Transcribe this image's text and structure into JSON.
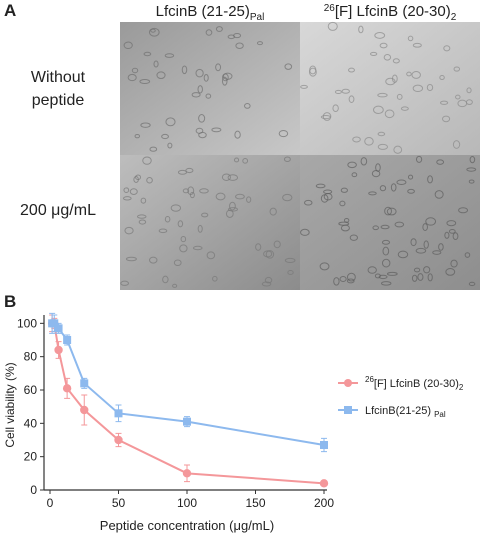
{
  "panel_a": {
    "label": "A",
    "columns": [
      {
        "main": "LfcinB (21-25)",
        "sub": "Pal"
      },
      {
        "sup": "26",
        "main": "[F] LfcinB (20-30)",
        "sub": "2"
      }
    ],
    "rows": [
      [
        "Without",
        "peptide"
      ],
      [
        "200 μg/mL"
      ]
    ]
  },
  "chart_data": {
    "type": "line",
    "panel_label": "B",
    "x_label": "Peptide concentration (μg/mL)",
    "y_label": "Cell viability (%)",
    "xlim": [
      0,
      200
    ],
    "ylim": [
      0,
      105
    ],
    "xticks": [
      0,
      50,
      100,
      150,
      200
    ],
    "yticks": [
      0,
      20,
      40,
      60,
      80,
      100
    ],
    "legend": "right",
    "series": [
      {
        "name": "[F] LfcinB (20-30)",
        "name_sup": "26",
        "name_sub": "2",
        "color": "#f4979a",
        "x": [
          1.5625,
          3.125,
          6.25,
          12.5,
          25,
          50,
          100,
          200
        ],
        "values": [
          100,
          100,
          84,
          61,
          48,
          30,
          10,
          4
        ],
        "errors": [
          5,
          3,
          5,
          6,
          9,
          4,
          5,
          1
        ]
      },
      {
        "name": "LfcinB(21-25) ",
        "name_sub": "Pal",
        "color": "#8db9ee",
        "x": [
          1.5625,
          3.125,
          6.25,
          12.5,
          25,
          50,
          100,
          200
        ],
        "values": [
          100,
          100,
          97,
          90,
          64,
          46,
          41,
          27
        ],
        "errors": [
          6,
          5,
          3,
          3,
          3,
          5,
          3,
          4
        ]
      }
    ]
  }
}
